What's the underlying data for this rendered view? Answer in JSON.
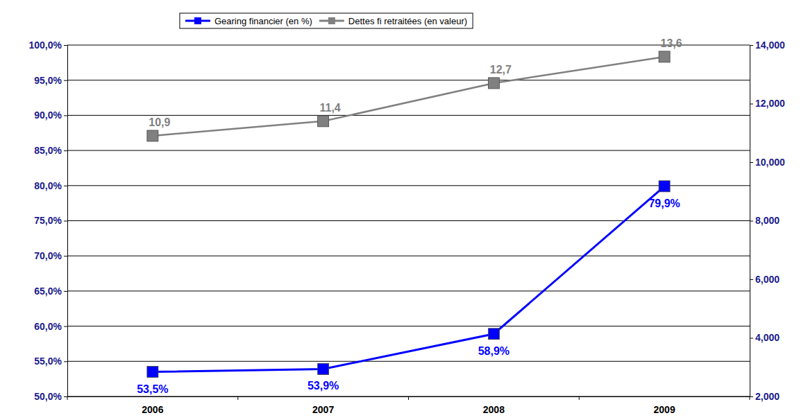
{
  "chart_data": {
    "type": "line",
    "categories": [
      "2006",
      "2007",
      "2008",
      "2009"
    ],
    "series": [
      {
        "name": "Gearing financier (en %)",
        "color": "#0000ff",
        "marker": "square",
        "axis": "y",
        "values": [
          53.5,
          53.9,
          58.9,
          79.9
        ],
        "value_labels": [
          "53,5%",
          "53,9%",
          "58,9%",
          "79,9%"
        ]
      },
      {
        "name": "Dettes fi retraitées (en valeur)",
        "color": "#808080",
        "marker": "square",
        "axis": "y2",
        "values": [
          10900,
          11400,
          12700,
          13600
        ],
        "value_labels": [
          "10,9",
          "11,4",
          "12,7",
          "13,6"
        ]
      }
    ],
    "ylim": [
      50,
      100
    ],
    "yticks": [
      {
        "value": 50,
        "label": "50,0%"
      },
      {
        "value": 55,
        "label": "55,0%"
      },
      {
        "value": 60,
        "label": "60,0%"
      },
      {
        "value": 65,
        "label": "65,0%"
      },
      {
        "value": 70,
        "label": "70,0%"
      },
      {
        "value": 75,
        "label": "75,0%"
      },
      {
        "value": 80,
        "label": "80,0%"
      },
      {
        "value": 85,
        "label": "85,0%"
      },
      {
        "value": 90,
        "label": "90,0%"
      },
      {
        "value": 95,
        "label": "95,0%"
      },
      {
        "value": 100,
        "label": "100,0%"
      }
    ],
    "y2lim": [
      2000,
      14000
    ],
    "y2ticks": [
      {
        "value": 2000,
        "label": "2,000"
      },
      {
        "value": 4000,
        "label": "4,000"
      },
      {
        "value": 6000,
        "label": "6,000"
      },
      {
        "value": 8000,
        "label": "8,000"
      },
      {
        "value": 10000,
        "label": "10,000"
      },
      {
        "value": 12000,
        "label": "12,000"
      },
      {
        "value": 14000,
        "label": "14,000"
      }
    ],
    "grid": true,
    "legend": "top",
    "data_labels": true
  }
}
